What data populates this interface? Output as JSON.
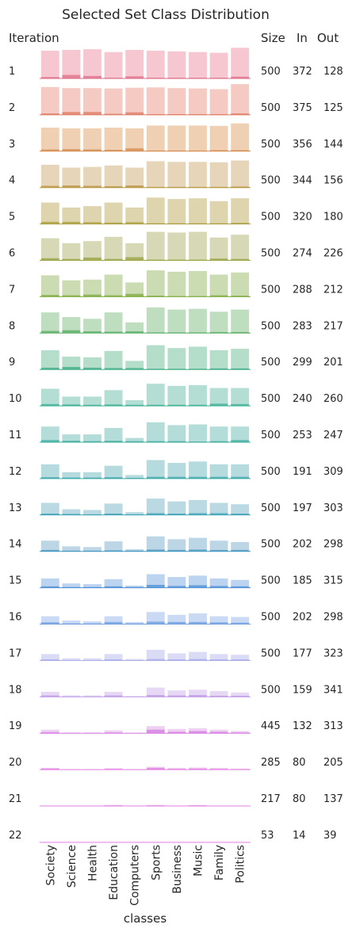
{
  "chart_data": {
    "type": "bar",
    "title": "Selected Set Class Distribution",
    "xlabel": "classes",
    "row_header": "Iteration",
    "columns": [
      "Size",
      "In",
      "Out"
    ],
    "categories": [
      "Society",
      "Science",
      "Health",
      "Education",
      "Computers",
      "Sports",
      "Business",
      "Music",
      "Family",
      "Politics"
    ],
    "colors": [
      "#f2a1b3",
      "#eda79a",
      "#e4b081",
      "#d6b989",
      "#c8b97a",
      "#bcc085",
      "#a8c47f",
      "#92c894",
      "#82c7a7",
      "#82c7b8",
      "#82c6c0",
      "#86c3c8",
      "#8cbfcf",
      "#91bbd6",
      "#8fb8e4",
      "#a9c2ec",
      "#c1c5ef",
      "#d5bdee",
      "#e3b3ea",
      "#e9b0e6",
      "#ecaee8",
      "#eeaaea"
    ],
    "accents": [
      "#dd6d86",
      "#dc7a62",
      "#d3894e",
      "#b8933d",
      "#a89c3b",
      "#98a141",
      "#7ea93c",
      "#56ac63",
      "#3aab82",
      "#3aad95",
      "#3aab9c",
      "#3aa7a8",
      "#3aa1b4",
      "#4497c0",
      "#4c8fd4",
      "#6c9de0",
      "#a6a6ea",
      "#bb95e4",
      "#d67be0",
      "#e07ee0",
      "#e07ee0",
      "#e07ee0"
    ],
    "iterations": [
      {
        "id": "1",
        "size": "500",
        "in": "372",
        "out": "128",
        "totals": [
          0.78,
          0.8,
          0.82,
          0.74,
          0.8,
          0.78,
          0.76,
          0.74,
          0.72,
          0.86
        ],
        "selected": [
          0.04,
          0.1,
          0.07,
          0.02,
          0.06,
          0.02,
          0.02,
          0.02,
          0.02,
          0.05
        ]
      },
      {
        "id": "2",
        "size": "500",
        "in": "375",
        "out": "125",
        "totals": [
          0.78,
          0.75,
          0.75,
          0.74,
          0.76,
          0.77,
          0.75,
          0.74,
          0.72,
          0.86
        ],
        "selected": [
          0.04,
          0.08,
          0.08,
          0.03,
          0.07,
          0.02,
          0.02,
          0.02,
          0.02,
          0.04
        ]
      },
      {
        "id": "3",
        "size": "500",
        "in": "356",
        "out": "144",
        "totals": [
          0.66,
          0.64,
          0.64,
          0.66,
          0.64,
          0.72,
          0.72,
          0.72,
          0.71,
          0.78
        ],
        "selected": [
          0.05,
          0.06,
          0.05,
          0.04,
          0.08,
          0.02,
          0.02,
          0.02,
          0.03,
          0.03
        ]
      },
      {
        "id": "4",
        "size": "500",
        "in": "344",
        "out": "156",
        "totals": [
          0.64,
          0.56,
          0.58,
          0.62,
          0.56,
          0.74,
          0.72,
          0.72,
          0.71,
          0.76
        ],
        "selected": [
          0.05,
          0.06,
          0.05,
          0.04,
          0.06,
          0.02,
          0.02,
          0.02,
          0.02,
          0.03
        ]
      },
      {
        "id": "5",
        "size": "500",
        "in": "320",
        "out": "180",
        "totals": [
          0.6,
          0.46,
          0.5,
          0.6,
          0.46,
          0.74,
          0.7,
          0.72,
          0.64,
          0.72
        ],
        "selected": [
          0.06,
          0.06,
          0.05,
          0.04,
          0.05,
          0.02,
          0.02,
          0.02,
          0.02,
          0.03
        ]
      },
      {
        "id": "6",
        "size": "500",
        "in": "274",
        "out": "226",
        "totals": [
          0.62,
          0.48,
          0.54,
          0.66,
          0.48,
          0.8,
          0.78,
          0.8,
          0.64,
          0.72
        ],
        "selected": [
          0.06,
          0.04,
          0.08,
          0.04,
          0.09,
          0.02,
          0.02,
          0.02,
          0.05,
          0.04
        ]
      },
      {
        "id": "7",
        "size": "500",
        "in": "288",
        "out": "212",
        "totals": [
          0.6,
          0.46,
          0.48,
          0.62,
          0.4,
          0.74,
          0.7,
          0.72,
          0.62,
          0.68
        ],
        "selected": [
          0.05,
          0.04,
          0.06,
          0.04,
          0.08,
          0.03,
          0.02,
          0.02,
          0.04,
          0.03
        ]
      },
      {
        "id": "8",
        "size": "500",
        "in": "283",
        "out": "217",
        "totals": [
          0.58,
          0.45,
          0.4,
          0.58,
          0.3,
          0.72,
          0.66,
          0.68,
          0.6,
          0.66
        ],
        "selected": [
          0.06,
          0.08,
          0.05,
          0.04,
          0.05,
          0.02,
          0.02,
          0.02,
          0.03,
          0.03
        ]
      },
      {
        "id": "9",
        "size": "500",
        "in": "299",
        "out": "201",
        "totals": [
          0.54,
          0.36,
          0.34,
          0.52,
          0.24,
          0.68,
          0.6,
          0.64,
          0.54,
          0.58
        ],
        "selected": [
          0.05,
          0.07,
          0.05,
          0.04,
          0.04,
          0.02,
          0.02,
          0.02,
          0.03,
          0.03
        ]
      },
      {
        "id": "10",
        "size": "500",
        "in": "240",
        "out": "260",
        "totals": [
          0.48,
          0.26,
          0.26,
          0.44,
          0.16,
          0.62,
          0.56,
          0.58,
          0.5,
          0.5
        ],
        "selected": [
          0.05,
          0.04,
          0.03,
          0.04,
          0.03,
          0.03,
          0.03,
          0.03,
          0.06,
          0.05
        ]
      },
      {
        "id": "11",
        "size": "500",
        "in": "253",
        "out": "247",
        "totals": [
          0.44,
          0.22,
          0.22,
          0.4,
          0.12,
          0.56,
          0.48,
          0.5,
          0.44,
          0.44
        ],
        "selected": [
          0.06,
          0.04,
          0.03,
          0.04,
          0.03,
          0.03,
          0.03,
          0.02,
          0.03,
          0.06
        ]
      },
      {
        "id": "12",
        "size": "500",
        "in": "191",
        "out": "309",
        "totals": [
          0.4,
          0.18,
          0.18,
          0.36,
          0.1,
          0.52,
          0.44,
          0.48,
          0.4,
          0.4
        ],
        "selected": [
          0.04,
          0.03,
          0.03,
          0.04,
          0.02,
          0.05,
          0.05,
          0.05,
          0.05,
          0.05
        ]
      },
      {
        "id": "13",
        "size": "500",
        "in": "197",
        "out": "303",
        "totals": [
          0.34,
          0.16,
          0.14,
          0.32,
          0.08,
          0.46,
          0.38,
          0.42,
          0.34,
          0.3
        ],
        "selected": [
          0.04,
          0.03,
          0.02,
          0.04,
          0.02,
          0.05,
          0.04,
          0.05,
          0.05,
          0.04
        ]
      },
      {
        "id": "14",
        "size": "500",
        "in": "202",
        "out": "298",
        "totals": [
          0.3,
          0.14,
          0.12,
          0.28,
          0.06,
          0.42,
          0.34,
          0.38,
          0.3,
          0.26
        ],
        "selected": [
          0.04,
          0.02,
          0.02,
          0.03,
          0.02,
          0.05,
          0.04,
          0.05,
          0.04,
          0.04
        ]
      },
      {
        "id": "15",
        "size": "500",
        "in": "185",
        "out": "315",
        "totals": [
          0.26,
          0.12,
          0.1,
          0.24,
          0.06,
          0.38,
          0.3,
          0.34,
          0.26,
          0.22
        ],
        "selected": [
          0.04,
          0.02,
          0.02,
          0.04,
          0.02,
          0.08,
          0.05,
          0.07,
          0.05,
          0.04
        ]
      },
      {
        "id": "16",
        "size": "500",
        "in": "202",
        "out": "298",
        "totals": [
          0.22,
          0.1,
          0.08,
          0.22,
          0.06,
          0.34,
          0.26,
          0.3,
          0.22,
          0.2
        ],
        "selected": [
          0.05,
          0.02,
          0.02,
          0.06,
          0.02,
          0.07,
          0.06,
          0.06,
          0.05,
          0.04
        ]
      },
      {
        "id": "17",
        "size": "500",
        "in": "177",
        "out": "323",
        "totals": [
          0.18,
          0.06,
          0.06,
          0.18,
          0.04,
          0.3,
          0.2,
          0.24,
          0.18,
          0.16
        ],
        "selected": [
          0.03,
          0.01,
          0.01,
          0.03,
          0.01,
          0.04,
          0.03,
          0.04,
          0.03,
          0.03
        ]
      },
      {
        "id": "18",
        "size": "500",
        "in": "159",
        "out": "341",
        "totals": [
          0.14,
          0.04,
          0.04,
          0.14,
          0.02,
          0.26,
          0.18,
          0.2,
          0.16,
          0.12
        ],
        "selected": [
          0.04,
          0.01,
          0.01,
          0.04,
          0.01,
          0.05,
          0.04,
          0.05,
          0.03,
          0.03
        ]
      },
      {
        "id": "19",
        "size": "445",
        "in": "132",
        "out": "313",
        "totals": [
          0.1,
          0.02,
          0.02,
          0.08,
          0.01,
          0.2,
          0.12,
          0.14,
          0.1,
          0.06
        ],
        "selected": [
          0.03,
          0.01,
          0.01,
          0.02,
          0.01,
          0.1,
          0.04,
          0.06,
          0.04,
          0.02
        ]
      },
      {
        "id": "20",
        "size": "285",
        "in": "80",
        "out": "205",
        "totals": [
          0.05,
          0.01,
          0.01,
          0.04,
          0.01,
          0.08,
          0.05,
          0.06,
          0.05,
          0.03
        ],
        "selected": [
          0.03,
          0.01,
          0.01,
          0.02,
          0.01,
          0.05,
          0.02,
          0.03,
          0.02,
          0.01
        ]
      },
      {
        "id": "21",
        "size": "217",
        "in": "80",
        "out": "137",
        "totals": [
          0.01,
          0.0,
          0.0,
          0.02,
          0.0,
          0.02,
          0.01,
          0.02,
          0.01,
          0.01
        ],
        "selected": [
          0.01,
          0.0,
          0.0,
          0.02,
          0.0,
          0.02,
          0.01,
          0.02,
          0.01,
          0.01
        ]
      },
      {
        "id": "22",
        "size": "53",
        "in": "14",
        "out": "39",
        "totals": [
          0.0,
          0.0,
          0.0,
          0.0,
          0.0,
          0.0,
          0.0,
          0.0,
          0.0,
          0.0
        ],
        "selected": [
          0.0,
          0.0,
          0.0,
          0.0,
          0.0,
          0.0,
          0.0,
          0.0,
          0.0,
          0.0
        ]
      }
    ]
  }
}
